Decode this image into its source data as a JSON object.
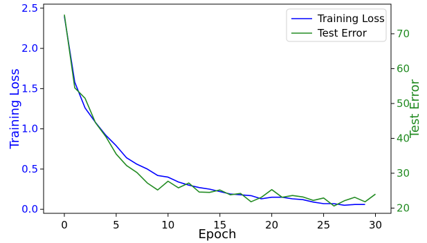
{
  "chart_data": {
    "type": "line",
    "xlabel": "Epoch",
    "ylabel_left": "Training Loss",
    "ylabel_right": "Test Error",
    "xlim": [
      -2,
      31.5
    ],
    "ylim_left": [
      -0.05,
      2.55
    ],
    "ylim_right": [
      18.5,
      78.5
    ],
    "x_ticks": [
      0,
      5,
      10,
      15,
      20,
      25,
      30
    ],
    "y_left_ticks": [
      0.0,
      0.5,
      1.0,
      1.5,
      2.0,
      2.5
    ],
    "y_right_ticks": [
      20,
      30,
      40,
      50,
      60,
      70
    ],
    "x_tick_labels": [
      "0",
      "5",
      "10",
      "15",
      "20",
      "25",
      "30"
    ],
    "y_left_tick_labels": [
      "0.0",
      "0.5",
      "1.0",
      "1.5",
      "2.0",
      "2.5"
    ],
    "y_right_tick_labels": [
      "20",
      "30",
      "40",
      "50",
      "60",
      "70"
    ],
    "grid": false,
    "legend_position": "top-right",
    "series": [
      {
        "name": "Training Loss",
        "axis": "left",
        "color": "#0000ff",
        "x": [
          0,
          1,
          2,
          3,
          4,
          5,
          6,
          7,
          8,
          9,
          10,
          11,
          12,
          13,
          14,
          15,
          16,
          17,
          18,
          19,
          20,
          21,
          22,
          23,
          24,
          25,
          26,
          27,
          28,
          29
        ],
        "values": [
          2.4,
          1.58,
          1.26,
          1.08,
          0.92,
          0.79,
          0.64,
          0.56,
          0.5,
          0.42,
          0.4,
          0.34,
          0.3,
          0.27,
          0.25,
          0.22,
          0.19,
          0.18,
          0.17,
          0.13,
          0.15,
          0.15,
          0.13,
          0.12,
          0.09,
          0.07,
          0.07,
          0.05,
          0.06,
          0.06
        ]
      },
      {
        "name": "Test Error",
        "axis": "right",
        "color": "#228b22",
        "x": [
          0,
          1,
          2,
          3,
          4,
          5,
          6,
          7,
          8,
          9,
          10,
          11,
          12,
          13,
          14,
          15,
          16,
          17,
          18,
          19,
          20,
          21,
          22,
          23,
          24,
          25,
          26,
          27,
          28,
          29,
          30
        ],
        "values": [
          75.5,
          54.5,
          51.5,
          44.5,
          40.5,
          35.5,
          32.2,
          30.2,
          27.2,
          25.2,
          27.7,
          25.8,
          27.2,
          24.6,
          24.5,
          25.2,
          23.8,
          24.2,
          21.8,
          23.1,
          25.3,
          23.1,
          23.6,
          23.2,
          22.2,
          22.9,
          20.6,
          22.1,
          23.1,
          21.8,
          24.0
        ]
      }
    ]
  }
}
